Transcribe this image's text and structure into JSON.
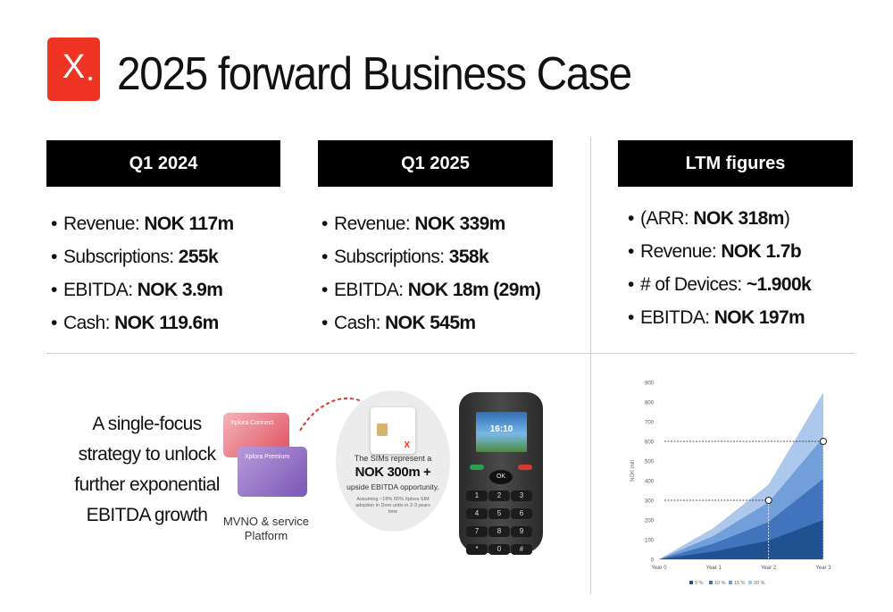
{
  "header": {
    "logo_letter": "X",
    "title": "2025 forward Business Case"
  },
  "columns": [
    {
      "heading": "Q1 2024",
      "bullets": [
        {
          "label": "Revenue: ",
          "value": "NOK 117m",
          "suffix": ""
        },
        {
          "label": "Subscriptions: ",
          "value": "255k",
          "suffix": ""
        },
        {
          "label": "EBITDA: ",
          "value": "NOK 3.9m",
          "suffix": ""
        },
        {
          "label": "Cash: ",
          "value": "NOK 119.6m",
          "suffix": ""
        }
      ]
    },
    {
      "heading": "Q1 2025",
      "bullets": [
        {
          "label": "Revenue: ",
          "value": "NOK 339m",
          "suffix": ""
        },
        {
          "label": "Subscriptions: ",
          "value": "358k",
          "suffix": ""
        },
        {
          "label": "EBITDA: ",
          "value": "NOK 18m (29m)",
          "suffix": ""
        },
        {
          "label": "Cash: ",
          "value": "NOK 545m",
          "suffix": ""
        }
      ]
    },
    {
      "heading": "LTM figures",
      "bullets": [
        {
          "label": "(ARR: ",
          "value": "NOK 318m",
          "suffix": ")"
        },
        {
          "label": "Revenue: ",
          "value": "NOK 1.7b",
          "suffix": ""
        },
        {
          "label": "# of Devices: ",
          "value": "~1.900k",
          "suffix": ""
        },
        {
          "label": "EBITDA: ",
          "value": "NOK 197m",
          "suffix": ""
        }
      ]
    }
  ],
  "strategy": {
    "lines": [
      "A single-focus",
      "strategy to unlock",
      "further exponential",
      "EBITDA growth"
    ]
  },
  "illustration": {
    "card_top_label": "Xplora Connect",
    "card_bottom_label": "Xplora Premium",
    "platform_caption_line1": "MVNO & service",
    "platform_caption_line2": "Platform",
    "bubble_line1": "The SIMs represent a",
    "bubble_line2": "NOK 300m +",
    "bubble_line3": "upside EBITDA opportunity.",
    "bubble_note": "Assuming ~19% 65% Xplora SIM adoption in Doro units in 2-3 years time",
    "phone_time": "16:10",
    "phone_ok": "OK",
    "phone_keys": [
      "1",
      "2",
      "3",
      "4",
      "5",
      "6",
      "7",
      "8",
      "9",
      "*",
      "0",
      "#"
    ]
  },
  "colors": {
    "brand_red": "#ee3524",
    "header_bg": "#000000",
    "series": [
      "#1f4f8f",
      "#3f72bd",
      "#6f9dd9",
      "#a9c5ec"
    ]
  },
  "chart_data": {
    "type": "area",
    "categories": [
      "Year 0",
      "Year 1",
      "Year 2",
      "Year 3"
    ],
    "ylabel": "NOK mill",
    "ylim": [
      0,
      900
    ],
    "yticks": [
      0,
      100,
      200,
      300,
      400,
      500,
      600,
      700,
      800,
      900
    ],
    "series": [
      {
        "name": "5 %",
        "values": [
          0,
          40,
          95,
          200
        ]
      },
      {
        "name": "10 %",
        "values": [
          0,
          80,
          190,
          410
        ]
      },
      {
        "name": "15 %",
        "values": [
          0,
          120,
          290,
          620
        ]
      },
      {
        "name": "20 %",
        "values": [
          0,
          160,
          380,
          850
        ]
      }
    ],
    "markers": [
      {
        "x": "Year 2",
        "y": 300
      },
      {
        "x": "Year 3",
        "y": 600
      }
    ],
    "legend_position": "bottom"
  }
}
